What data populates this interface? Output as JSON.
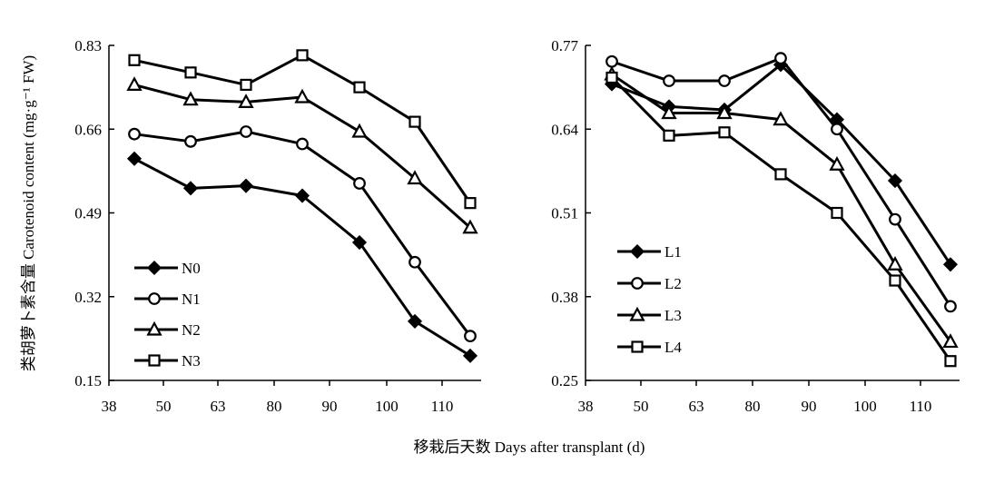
{
  "xlabel": "移栽后天数 Days after transplant (d)",
  "ylabel": "类胡萝卜素含量 Carotenoid content (mg·g⁻¹ FW)",
  "colors": {
    "line": "#000000",
    "background": "#ffffff"
  },
  "chart_data": [
    {
      "type": "line",
      "panel": "left",
      "x": [
        44,
        56,
        70,
        84,
        95,
        105,
        115
      ],
      "xticks": [
        "38",
        "50",
        "63",
        "80",
        "90",
        "100",
        "110"
      ],
      "yticks": [
        "0.15",
        "0.32",
        "0.49",
        "0.66",
        "0.83"
      ],
      "ylim": [
        0.15,
        0.83
      ],
      "legend_position": "bottom-left",
      "series": [
        {
          "name": "N0",
          "marker": "diamond",
          "values": [
            0.6,
            0.54,
            0.545,
            0.525,
            0.43,
            0.27,
            0.2
          ]
        },
        {
          "name": "N1",
          "marker": "circle",
          "values": [
            0.65,
            0.635,
            0.655,
            0.63,
            0.55,
            0.39,
            0.24
          ]
        },
        {
          "name": "N2",
          "marker": "triangle",
          "values": [
            0.75,
            0.72,
            0.715,
            0.725,
            0.655,
            0.56,
            0.46
          ]
        },
        {
          "name": "N3",
          "marker": "square",
          "values": [
            0.8,
            0.775,
            0.75,
            0.81,
            0.745,
            0.675,
            0.51
          ]
        }
      ]
    },
    {
      "type": "line",
      "panel": "right",
      "x": [
        44,
        56,
        70,
        84,
        95,
        105,
        115
      ],
      "xticks": [
        "38",
        "50",
        "63",
        "80",
        "90",
        "100",
        "110"
      ],
      "yticks": [
        "0.25",
        "0.38",
        "0.51",
        "0.64",
        "0.77"
      ],
      "ylim": [
        0.25,
        0.77
      ],
      "legend_position": "bottom-left",
      "series": [
        {
          "name": "L1",
          "marker": "diamond",
          "values": [
            0.71,
            0.675,
            0.67,
            0.74,
            0.655,
            0.56,
            0.43
          ]
        },
        {
          "name": "L2",
          "marker": "circle",
          "values": [
            0.745,
            0.715,
            0.715,
            0.75,
            0.64,
            0.5,
            0.365
          ]
        },
        {
          "name": "L3",
          "marker": "triangle",
          "values": [
            0.725,
            0.665,
            0.665,
            0.655,
            0.585,
            0.43,
            0.31
          ]
        },
        {
          "name": "L4",
          "marker": "square",
          "values": [
            0.72,
            0.63,
            0.635,
            0.57,
            0.51,
            0.405,
            0.28
          ]
        }
      ]
    }
  ]
}
